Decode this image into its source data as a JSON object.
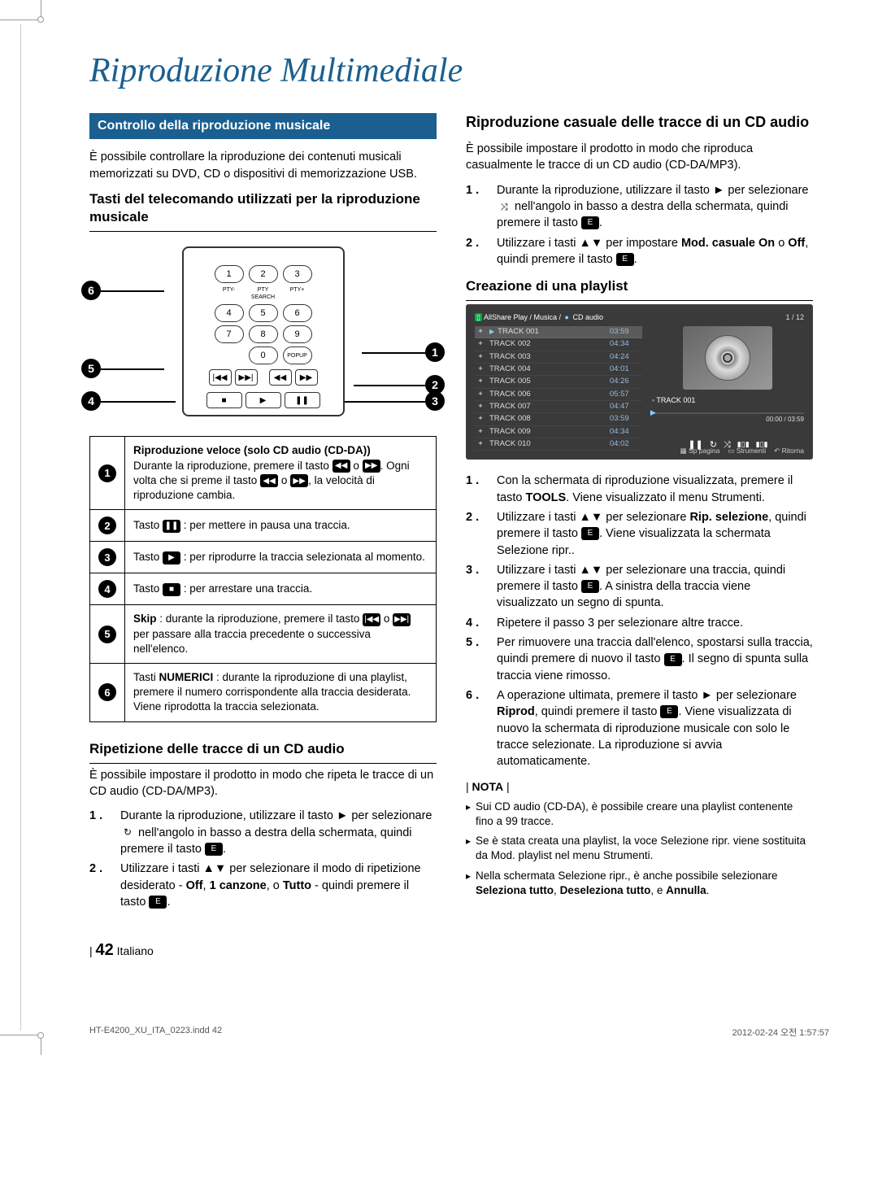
{
  "title": "Riproduzione Multimediale",
  "left": {
    "section_header": "Controllo della riproduzione musicale",
    "intro": "È possibile controllare la riproduzione dei contenuti musicali memorizzati su DVD, CD o dispositivi di memorizzazione USB.",
    "remote_heading": "Tasti del telecomando utilizzati per la riproduzione musicale",
    "remote": {
      "rows": [
        [
          "1",
          "2",
          "3"
        ],
        [
          "4",
          "5",
          "6"
        ],
        [
          "7",
          "8",
          "9"
        ]
      ],
      "zero": "0",
      "popup": "POPUP",
      "labels_top": [
        "PTY-",
        "PTY SEARCH",
        "PTY+"
      ]
    },
    "callouts": [
      "1",
      "2",
      "3",
      "4",
      "5",
      "6"
    ],
    "table": [
      {
        "num": "1",
        "html": "<b>Riproduzione veloce (solo CD audio (CD-DA))</b><br>Durante la riproduzione, premere il tasto <span class='icon-box'>◀◀</span> o <span class='icon-box'>▶▶</span>. Ogni volta che si preme il tasto <span class='icon-box'>◀◀</span> o <span class='icon-box'>▶▶</span>, la velocità di riproduzione cambia."
      },
      {
        "num": "2",
        "html": "Tasto <span class='icon-box'>❚❚</span> : per mettere in pausa una traccia."
      },
      {
        "num": "3",
        "html": "Tasto <span class='icon-box'>▶</span> : per riprodurre la traccia selezionata al momento."
      },
      {
        "num": "4",
        "html": "Tasto <span class='icon-box'>■</span> : per arrestare una traccia."
      },
      {
        "num": "5",
        "html": "<b>Skip</b> : durante la riproduzione, premere il tasto <span class='icon-box'>|◀◀</span> o <span class='icon-box'>▶▶|</span> per passare alla traccia precedente o successiva nell'elenco."
      },
      {
        "num": "6",
        "html": "Tasti <b>NUMERICI</b> : durante la riproduzione di una playlist, premere il numero corrispondente alla traccia desiderata. Viene riprodotta la traccia selezionata."
      }
    ],
    "repeat_heading": "Ripetizione delle tracce di un CD audio",
    "repeat_intro": "È possibile impostare il prodotto in modo che ripeta le tracce di un CD audio (CD-DA/MP3).",
    "repeat_steps": [
      "Durante la riproduzione, utilizzare il tasto ► per selezionare <span class='icon-inline'>↻</span> nell'angolo in basso a destra della schermata, quindi premere il tasto <span class='icon-box'>E</span>.",
      "Utilizzare i tasti ▲▼ per selezionare il modo di ripetizione desiderato - <b>Off</b>, <b>1 canzone</b>, o <b>Tutto</b> - quindi premere il tasto <span class='icon-box'>E</span>."
    ]
  },
  "right": {
    "shuffle_heading": "Riproduzione casuale delle tracce di un CD audio",
    "shuffle_intro": "È possibile impostare il prodotto in modo che riproduca casualmente le tracce di un CD audio (CD-DA/MP3).",
    "shuffle_steps": [
      "Durante la riproduzione, utilizzare il tasto ► per selezionare <span class='icon-inline'>⤨</span> nell'angolo in basso a destra della schermata, quindi premere il tasto <span class='icon-box'>E</span>.",
      "Utilizzare i tasti ▲▼ per impostare <b>Mod. casuale On</b> o <b>Off</b>, quindi premere il tasto <span class='icon-box'>E</span>."
    ],
    "playlist_heading": "Creazione di una playlist",
    "screenshot": {
      "header_path": "AllShare Play / Musica /",
      "header_source": "CD audio",
      "counter": "1 / 12",
      "tracks": [
        {
          "name": "TRACK 001",
          "time": "03:59",
          "playing": true
        },
        {
          "name": "TRACK 002",
          "time": "04:34"
        },
        {
          "name": "TRACK 003",
          "time": "04:24"
        },
        {
          "name": "TRACK 004",
          "time": "04:01"
        },
        {
          "name": "TRACK 005",
          "time": "04:26"
        },
        {
          "name": "TRACK 006",
          "time": "05:57"
        },
        {
          "name": "TRACK 007",
          "time": "04:47"
        },
        {
          "name": "TRACK 008",
          "time": "03:59"
        },
        {
          "name": "TRACK 009",
          "time": "04:34"
        },
        {
          "name": "TRACK 010",
          "time": "04:02"
        }
      ],
      "now_playing": "TRACK 001",
      "time_elapsed": "00:00 / 03:59",
      "footer": [
        "Sp pagina",
        "Strumenti",
        "Ritorna"
      ]
    },
    "playlist_steps": [
      "Con la schermata di riproduzione visualizzata, premere il tasto <b>TOOLS</b>. Viene visualizzato il menu Strumenti.",
      "Utilizzare i tasti ▲▼ per selezionare <b>Rip. selezione</b>, quindi premere il tasto <span class='icon-box'>E</span>. Viene visualizzata la schermata Selezione ripr..",
      "Utilizzare i tasti ▲▼ per selezionare una traccia, quindi premere il tasto <span class='icon-box'>E</span>. A sinistra della traccia viene visualizzato un segno di spunta.",
      "Ripetere il passo 3 per selezionare altre tracce.",
      "Per rimuovere una traccia dall'elenco, spostarsi sulla traccia, quindi premere di nuovo il tasto <span class='icon-box'>E</span>. Il segno di spunta sulla traccia viene rimosso.",
      "A operazione ultimata, premere il tasto ► per selezionare <b>Riprod</b>, quindi premere il tasto <span class='icon-box'>E</span>. Viene visualizzata di nuovo la schermata di riproduzione musicale con solo le tracce selezionate. La riproduzione si avvia automaticamente."
    ],
    "nota_label": "| NOTA |",
    "nota": [
      "Sui CD audio (CD-DA), è possibile creare una playlist contenente fino a 99 tracce.",
      "Se è stata creata una playlist, la voce Selezione ripr. viene sostituita da Mod. playlist nel menu Strumenti.",
      "Nella schermata Selezione ripr., è anche possibile selezionare <b>Seleziona tutto</b>, <b>Deseleziona tutto</b>, e <b>Annulla</b>."
    ]
  },
  "footer": {
    "page_num": "42",
    "lang": "Italiano",
    "file": "HT-E4200_XU_ITA_0223.indd   42",
    "timestamp": "2012-02-24   오전 1:57:57"
  },
  "colors": {
    "accent": "#1a5f8f",
    "text": "#000000",
    "screenshot_bg": "#3a3a3a",
    "track_time": "#9bd4e8"
  }
}
